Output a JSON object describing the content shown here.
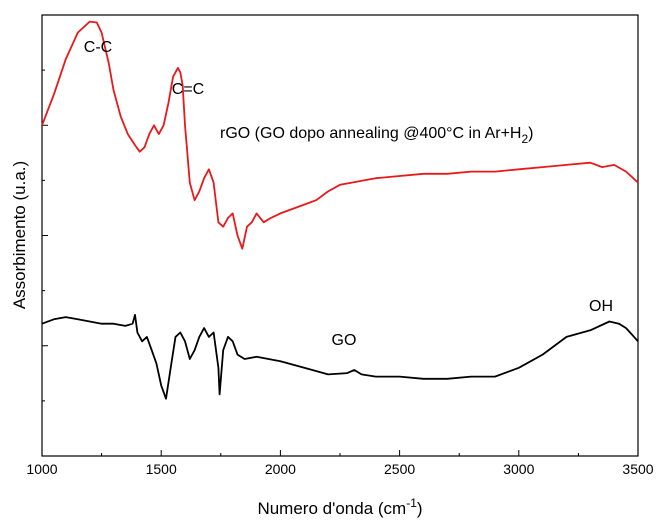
{
  "chart_data": {
    "type": "line",
    "xlabel": "Numero d'onda (cm",
    "xlabel_sup": "-1",
    "xlabel_suffix": ")",
    "ylabel": "Assorbimento (u.a.)",
    "xlim": [
      1000,
      3500
    ],
    "ylim": [
      0,
      100
    ],
    "x_ticks": [
      1000,
      1500,
      2000,
      2500,
      3000,
      3500
    ],
    "x_tick_labels": [
      "1000",
      "1500",
      "2000",
      "2500",
      "3000",
      "3500"
    ],
    "y_tick_labels_shown": false,
    "grid": false,
    "legend": "none",
    "annotations": {
      "cc": "C-C",
      "ceqc": "C=C",
      "rgo_main": "rGO (GO dopo annealing @400°C in Ar+H",
      "rgo_sub": "2",
      "rgo_close": ")",
      "go": "GO",
      "oh": "OH"
    },
    "series": [
      {
        "color": "#e8191a",
        "x": [
          1000,
          1050,
          1100,
          1150,
          1200,
          1230,
          1250,
          1280,
          1300,
          1330,
          1360,
          1390,
          1410,
          1430,
          1450,
          1470,
          1490,
          1510,
          1530,
          1550,
          1570,
          1580,
          1590,
          1600,
          1620,
          1640,
          1660,
          1680,
          1700,
          1720,
          1740,
          1760,
          1780,
          1800,
          1820,
          1840,
          1860,
          1880,
          1900,
          1930,
          1960,
          2000,
          2050,
          2100,
          2150,
          2200,
          2250,
          2300,
          2350,
          2400,
          2500,
          2600,
          2700,
          2800,
          2900,
          3000,
          3100,
          3200,
          3300,
          3350,
          3400,
          3450,
          3500
        ],
        "y": [
          75,
          82,
          90,
          96,
          98.5,
          98.3,
          96,
          89,
          83,
          77,
          73,
          70.5,
          69,
          70,
          73,
          75,
          73,
          75,
          80,
          86,
          88,
          87,
          84,
          75,
          62,
          58,
          60,
          63,
          65,
          62,
          53,
          52,
          54,
          55,
          50,
          47,
          52,
          53,
          55,
          53,
          54,
          55,
          56,
          57,
          58,
          60,
          61.5,
          62,
          62.5,
          63,
          63.5,
          64,
          64,
          64.5,
          64.5,
          65,
          65.5,
          66,
          66.5,
          65.5,
          66,
          64.5,
          62
        ]
      },
      {
        "color": "#000000",
        "x": [
          1000,
          1050,
          1100,
          1150,
          1200,
          1250,
          1300,
          1350,
          1380,
          1390,
          1400,
          1420,
          1440,
          1460,
          1480,
          1500,
          1520,
          1540,
          1560,
          1580,
          1600,
          1620,
          1640,
          1660,
          1680,
          1700,
          1720,
          1740,
          1745,
          1760,
          1780,
          1800,
          1820,
          1850,
          1900,
          1950,
          2000,
          2100,
          2200,
          2280,
          2310,
          2340,
          2400,
          2500,
          2600,
          2700,
          2800,
          2900,
          3000,
          3100,
          3200,
          3300,
          3380,
          3420,
          3450,
          3500
        ],
        "y": [
          30,
          31,
          31.5,
          31,
          30.5,
          30,
          30,
          29.5,
          30,
          32,
          28,
          26,
          27,
          24,
          21,
          16,
          13,
          20,
          27,
          28,
          26,
          22,
          24,
          27,
          29,
          27,
          28,
          20,
          14,
          24,
          27,
          26,
          23,
          22,
          22.5,
          22,
          21.5,
          20,
          18.5,
          18.8,
          19.5,
          18.5,
          18,
          18,
          17.5,
          17.5,
          18,
          18,
          20,
          23,
          27,
          28.5,
          30.5,
          30,
          29,
          26
        ]
      }
    ]
  }
}
